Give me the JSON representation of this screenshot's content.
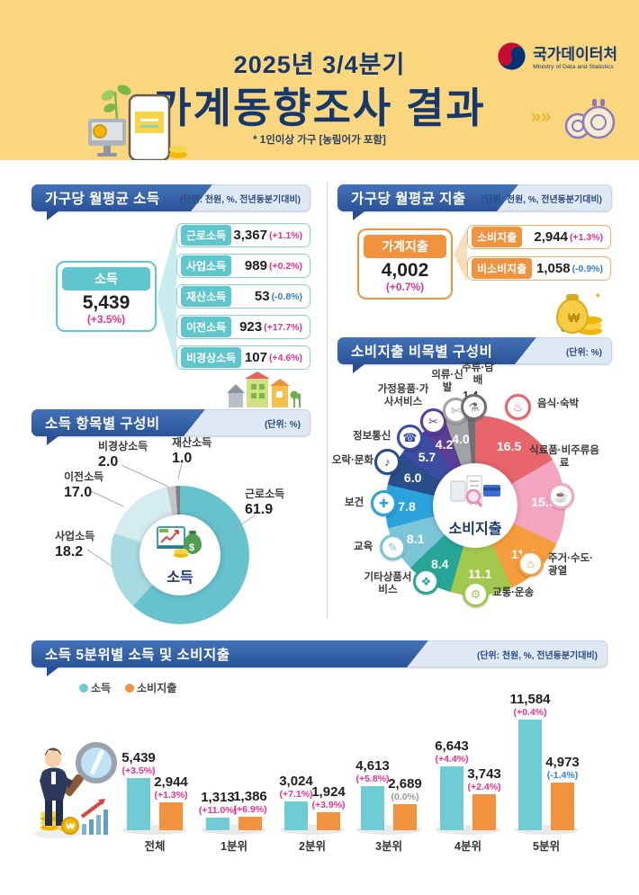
{
  "header": {
    "subtitle": "2025년 3/4분기",
    "title": "가계동향조사 결과",
    "note": "* 1인이상 가구 [농림어가 포함]",
    "agency": {
      "name": "국가데이터처",
      "name_en": "Ministry of Data and Statistics"
    }
  },
  "colors": {
    "positive_pink": "#e8308f",
    "negative_blue": "#2f7ed8",
    "neutral_gray": "#999999",
    "income_teal": "#5fc6ce",
    "expense_orange": "#f0923e",
    "ribbon_blue": "#2a5399",
    "header_bg": "#fad77f",
    "title_navy": "#17386c"
  },
  "income_section": {
    "title": "가구당 월평균 소득",
    "unit": "(단위: 천원, %, 전년동분기대비)",
    "total": {
      "label": "소득",
      "value": "5,439",
      "change": "(+3.5%)"
    },
    "items": [
      {
        "label": "근로소득",
        "value": "3,367",
        "change": "(+1.1%)"
      },
      {
        "label": "사업소득",
        "value": "989",
        "change": "(+0.2%)"
      },
      {
        "label": "재산소득",
        "value": "53",
        "change": "(-0.8%)"
      },
      {
        "label": "이전소득",
        "value": "923",
        "change": "(+17.7%)"
      },
      {
        "label": "비경상소득",
        "value": "107",
        "change": "(+4.6%)"
      }
    ]
  },
  "expense_section": {
    "title": "가구당 월평균 지출",
    "unit": "(단위: 천원, %, 전년동분기대비)",
    "total": {
      "label": "가계지출",
      "value": "4,002",
      "change": "(+0.7%)"
    },
    "items": [
      {
        "label": "소비지출",
        "value": "2,944",
        "change": "(+1.3%)"
      },
      {
        "label": "비소비지출",
        "value": "1,058",
        "change": "(-0.9%)"
      }
    ]
  },
  "chart_data": [
    {
      "type": "pie",
      "title": "소득 항목별 구성비",
      "unit": "(단위: %)",
      "center_label": "소득",
      "legend_position": "around",
      "segments": [
        {
          "label": "근로소득",
          "value": 61.9,
          "display": "61.9",
          "color": "#66c2cd"
        },
        {
          "label": "사업소득",
          "value": 18.2,
          "display": "18.2",
          "color": "#a6dbe1"
        },
        {
          "label": "이전소득",
          "value": 17.0,
          "display": "17.0",
          "color": "#d4ecef"
        },
        {
          "label": "비경상소득",
          "value": 2.0,
          "display": "2.0",
          "color": "#c2c4c6"
        },
        {
          "label": "재산소득",
          "value": 1.0,
          "display": "1.0",
          "color": "#7c8083"
        }
      ]
    },
    {
      "type": "pie",
      "title": "소비지출 비목별 구성비",
      "unit": "(단위: %)",
      "center_label": "소비지출",
      "legend_position": "around",
      "segments": [
        {
          "label": "음식·숙박",
          "value": 16.5,
          "display": "16.5",
          "color": "#e8656b",
          "icon": "food-icon"
        },
        {
          "label": "식료품·비주류음료",
          "value": 15.5,
          "display": "15.5",
          "color": "#f3a5c1",
          "icon": "grocery-icon"
        },
        {
          "label": "주거·수도·광열",
          "value": 11.4,
          "display": "11.4",
          "color": "#f59c3e",
          "icon": "housing-icon"
        },
        {
          "label": "교통·운송",
          "value": 11.1,
          "display": "11.1",
          "color": "#a3c84e",
          "icon": "transport-icon"
        },
        {
          "label": "기타상품서비스",
          "value": 8.4,
          "display": "8.4",
          "color": "#27a596",
          "icon": "misc-goods-icon"
        },
        {
          "label": "교육",
          "value": 8.1,
          "display": "8.1",
          "color": "#7cc5d8",
          "icon": "education-icon"
        },
        {
          "label": "보건",
          "value": 7.8,
          "display": "7.8",
          "color": "#2aa2db",
          "icon": "health-icon"
        },
        {
          "label": "오락·문화",
          "value": 6.0,
          "display": "6.0",
          "color": "#2a4d8b",
          "icon": "recreation-icon"
        },
        {
          "label": "정보통신",
          "value": 5.7,
          "display": "5.7",
          "color": "#3b4da0",
          "icon": "communication-icon"
        },
        {
          "label": "가정용품·가사서비스",
          "value": 4.2,
          "display": "4.2",
          "color": "#5a3d99",
          "icon": "household-goods-icon"
        },
        {
          "label": "의류·신발",
          "value": 4.0,
          "display": "4.0",
          "color": "#a1a3a6",
          "icon": "clothing-icon"
        },
        {
          "label": "주류·담배",
          "value": 1.4,
          "display": "1.4",
          "color": "#6d7176",
          "icon": "alcohol-tobacco-icon"
        }
      ]
    },
    {
      "type": "bar",
      "title": "소득 5분위별 소득 및 소비지출",
      "unit": "(단위: 천원, %, 전년동분기대비)",
      "legend": [
        "소득",
        "소비지출"
      ],
      "colors": [
        "#6fccd4",
        "#f0923e"
      ],
      "categories": [
        "전체",
        "1분위",
        "2분위",
        "3분위",
        "4분위",
        "5분위"
      ],
      "series": [
        {
          "name": "소득",
          "values": [
            5439,
            1313,
            3024,
            4613,
            6643,
            11584
          ],
          "labels": [
            "5,439",
            "1,313",
            "3,024",
            "4,613",
            "6,643",
            "11,584"
          ],
          "changes": [
            "(+3.5%)",
            "(+11.0%)",
            "(+7.1%)",
            "(+5.8%)",
            "(+4.4%)",
            "(+0.4%)"
          ]
        },
        {
          "name": "소비지출",
          "values": [
            2944,
            1386,
            1924,
            2689,
            3743,
            4973
          ],
          "labels": [
            "2,944",
            "1,386",
            "1,924",
            "2,689",
            "3,743",
            "4,973"
          ],
          "changes": [
            "(+1.3%)",
            "(+6.9%)",
            "(+3.9%)",
            "(0.0%)",
            "(+2.4%)",
            "(-1.4%)"
          ]
        }
      ]
    }
  ]
}
